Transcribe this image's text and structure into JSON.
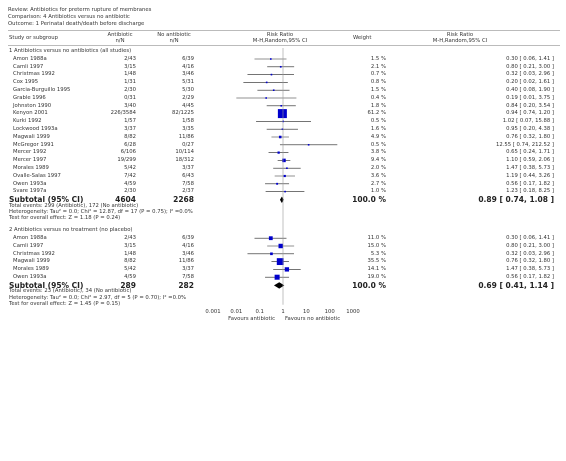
{
  "review": {
    "review_line": "Review:  Antibiotics for preterm rupture of membranes",
    "comparison_line": "Comparison:  4 Antibiotics versus no antibiotic",
    "outcome_line": "Outcome:  1 Perinatal death/death before discharge"
  },
  "columns": {
    "study": "Study or subgroup",
    "exp": "Antibiotic",
    "exp_sub": "n/N",
    "ctl": "No antibiotic",
    "ctl_sub": "n/N",
    "rr": "Risk Ratio",
    "rr_sub": "M-H,Random,95% CI",
    "weight": "Weight",
    "rr2": "Risk Ratio",
    "rr2_sub": "M-H,Random,95% CI"
  },
  "chart_data": {
    "type": "forest",
    "scale": "log",
    "xlim": [
      0.001,
      1000
    ],
    "ticks": [
      0.001,
      0.01,
      0.1,
      1,
      10,
      100,
      1000
    ],
    "tick_labels": [
      "0.001",
      "0.01",
      "0.1",
      "1",
      "10",
      "100",
      "1000"
    ],
    "favours_left": "Favours antibiotic",
    "favours_right": "Favours no antibiotic",
    "groups": [
      {
        "title": "1 Antibiotics versus no antibiotics (all studies)",
        "studies": [
          {
            "name": "Amon 1988a",
            "exp": "2/43",
            "ctl": "6/39",
            "weight": "1.5 %",
            "rr": 0.3,
            "lo": 0.06,
            "hi": 1.41,
            "ci": "0.30 [ 0.06, 1.41 ]"
          },
          {
            "name": "Camli 1997",
            "exp": "3/15",
            "ctl": "4/16",
            "weight": "2.1 %",
            "rr": 0.8,
            "lo": 0.21,
            "hi": 3.0,
            "ci": "0.80 [ 0.21, 3.00 ]"
          },
          {
            "name": "Christmas 1992",
            "exp": "1/48",
            "ctl": "3/46",
            "weight": "0.7 %",
            "rr": 0.32,
            "lo": 0.03,
            "hi": 2.96,
            "ci": "0.32 [ 0.03, 2.96 ]"
          },
          {
            "name": "Cox 1995",
            "exp": "1/31",
            "ctl": "5/31",
            "weight": "0.8 %",
            "rr": 0.2,
            "lo": 0.02,
            "hi": 1.61,
            "ci": "0.20 [ 0.02, 1.61 ]"
          },
          {
            "name": "Garcia-Burguillo 1995",
            "exp": "2/30",
            "ctl": "5/30",
            "weight": "1.5 %",
            "rr": 0.4,
            "lo": 0.08,
            "hi": 1.9,
            "ci": "0.40 [ 0.08, 1.90 ]"
          },
          {
            "name": "Grable 1996",
            "exp": "0/31",
            "ctl": "2/29",
            "weight": "0.4 %",
            "rr": 0.19,
            "lo": 0.01,
            "hi": 3.75,
            "ci": "0.19 [ 0.01, 3.75 ]"
          },
          {
            "name": "Johnston 1990",
            "exp": "3/40",
            "ctl": "4/45",
            "weight": "1.8 %",
            "rr": 0.84,
            "lo": 0.2,
            "hi": 3.54,
            "ci": "0.84 [ 0.20, 3.54 ]"
          },
          {
            "name": "Kenyon 2001",
            "exp": "226/3584",
            "ctl": "82/1225",
            "weight": "61.2 %",
            "rr": 0.94,
            "lo": 0.74,
            "hi": 1.2,
            "ci": "0.94 [ 0.74, 1.20 ]"
          },
          {
            "name": "Kurki  1992",
            "exp": "1/57",
            "ctl": "1/58",
            "weight": "0.5 %",
            "rr": 1.02,
            "lo": 0.07,
            "hi": 15.88,
            "ci": "1.02 [ 0.07, 15.88 ]"
          },
          {
            "name": "Lockwood 1993a",
            "exp": "3/37",
            "ctl": "3/35",
            "weight": "1.6 %",
            "rr": 0.95,
            "lo": 0.2,
            "hi": 4.38,
            "ci": "0.95 [ 0.20, 4.38 ]"
          },
          {
            "name": "Magwali 1999",
            "exp": "8/82",
            "ctl": "11/86",
            "weight": "4.9 %",
            "rr": 0.76,
            "lo": 0.32,
            "hi": 1.8,
            "ci": "0.76 [ 0.32, 1.80 ]"
          },
          {
            "name": "McGregor 1991",
            "exp": "6/28",
            "ctl": "0/27",
            "weight": "0.5 %",
            "rr": 12.55,
            "lo": 0.74,
            "hi": 212.52,
            "ci": "12.55 [ 0.74, 212.52 ]"
          },
          {
            "name": "Mercer 1992",
            "exp": "6/106",
            "ctl": "10/114",
            "weight": "3.8 %",
            "rr": 0.65,
            "lo": 0.24,
            "hi": 1.71,
            "ci": "0.65 [ 0.24, 1.71 ]"
          },
          {
            "name": "Mercer 1997",
            "exp": "19/299",
            "ctl": "18/312",
            "weight": "9.4 %",
            "rr": 1.1,
            "lo": 0.59,
            "hi": 2.06,
            "ci": "1.10 [ 0.59, 2.06 ]"
          },
          {
            "name": "Morales 1989",
            "exp": "5/42",
            "ctl": "3/37",
            "weight": "2.0 %",
            "rr": 1.47,
            "lo": 0.38,
            "hi": 5.73,
            "ci": "1.47 [ 0.38, 5.73 ]"
          },
          {
            "name": "Ovalle-Salas 1997",
            "exp": "7/42",
            "ctl": "6/43",
            "weight": "3.6 %",
            "rr": 1.19,
            "lo": 0.44,
            "hi": 3.26,
            "ci": "1.19 [ 0.44, 3.26 ]"
          },
          {
            "name": "Owen 1993a",
            "exp": "4/59",
            "ctl": "7/58",
            "weight": "2.7 %",
            "rr": 0.56,
            "lo": 0.17,
            "hi": 1.82,
            "ci": "0.56 [ 0.17, 1.82 ]"
          },
          {
            "name": "Svare 1997a",
            "exp": "2/30",
            "ctl": "2/37",
            "weight": "1.0 %",
            "rr": 1.23,
            "lo": 0.18,
            "hi": 8.25,
            "ci": "1.23 [ 0.18, 8.25 ]"
          }
        ],
        "subtotal": {
          "label": "Subtotal (95% CI)",
          "exp_n": "4604",
          "ctl_n": "2268",
          "weight": "100.0 %",
          "rr": 0.89,
          "lo": 0.74,
          "hi": 1.08,
          "ci": "0.89 [ 0.74, 1.08 ]"
        },
        "notes": [
          "Total events: 299 (Antibiotic), 172 (No antibiotic)",
          "Heterogeneity: Tau² = 0.0; Chi² = 12.87, df = 17 (P = 0.75); I² =0.0%",
          "Test for overall effect: Z = 1.18 (P = 0.24)"
        ]
      },
      {
        "title": "2 Antibiotics versus no treatment (no placebo)",
        "studies": [
          {
            "name": "Amon 1988a",
            "exp": "2/43",
            "ctl": "6/39",
            "weight": "11.0 %",
            "rr": 0.3,
            "lo": 0.06,
            "hi": 1.41,
            "ci": "0.30 [ 0.06, 1.41 ]"
          },
          {
            "name": "Camli 1997",
            "exp": "3/15",
            "ctl": "4/16",
            "weight": "15.0 %",
            "rr": 0.8,
            "lo": 0.21,
            "hi": 3.0,
            "ci": "0.80 [ 0.21, 3.00 ]"
          },
          {
            "name": "Christmas 1992",
            "exp": "1/48",
            "ctl": "3/46",
            "weight": "5.3 %",
            "rr": 0.32,
            "lo": 0.03,
            "hi": 2.96,
            "ci": "0.32 [ 0.03, 2.96 ]"
          },
          {
            "name": "Magwali 1999",
            "exp": "8/82",
            "ctl": "11/86",
            "weight": "35.5 %",
            "rr": 0.76,
            "lo": 0.32,
            "hi": 1.8,
            "ci": "0.76 [ 0.32, 1.80 ]"
          },
          {
            "name": "Morales 1989",
            "exp": "5/42",
            "ctl": "3/37",
            "weight": "14.1 %",
            "rr": 1.47,
            "lo": 0.38,
            "hi": 5.73,
            "ci": "1.47 [ 0.38, 5.73 ]"
          },
          {
            "name": "Owen 1993a",
            "exp": "4/59",
            "ctl": "7/58",
            "weight": "19.0 %",
            "rr": 0.56,
            "lo": 0.17,
            "hi": 1.82,
            "ci": "0.56 [ 0.17, 1.82 ]"
          }
        ],
        "subtotal": {
          "label": "Subtotal (95% CI)",
          "exp_n": "289",
          "ctl_n": "282",
          "weight": "100.0 %",
          "rr": 0.69,
          "lo": 0.41,
          "hi": 1.14,
          "ci": "0.69 [ 0.41, 1.14 ]"
        },
        "notes": [
          "Total events: 23 (Antibiotic), 34 (No antibiotic)",
          "Heterogeneity: Tau² = 0.0; Chi² = 2.97, df = 5 (P = 0.70); I² =0.0%",
          "Test for overall effect: Z = 1.45 (P = 0.15)"
        ]
      }
    ]
  }
}
